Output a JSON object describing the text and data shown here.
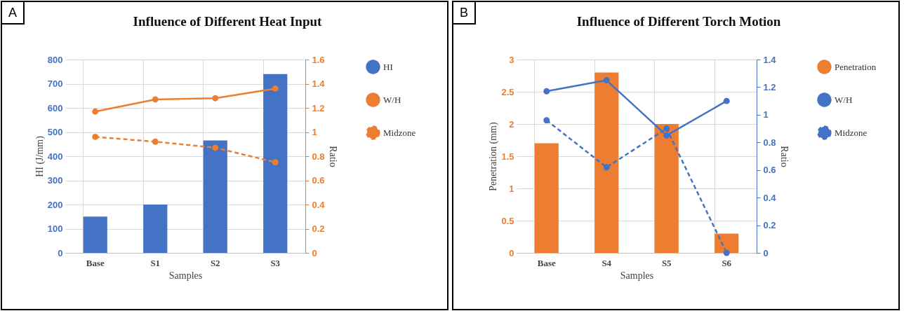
{
  "chart_data": [
    {
      "type": "bar",
      "title": "Influence of Different Heat Input",
      "annotations": [
        "A"
      ],
      "xlabel": "Samples",
      "ylabel": "HI (J/mm)",
      "y2label": "Ratio",
      "categories": [
        "Base",
        "S1",
        "S2",
        "S3"
      ],
      "series": [
        {
          "name": "HI",
          "color": "#4472c4",
          "values": [
            150,
            200,
            465,
            740
          ]
        },
        {
          "name": "W/H",
          "type": "line",
          "axis": "y2",
          "color": "#ed7d31",
          "line_style": "solid",
          "marker": "circle",
          "values": [
            1.17,
            1.27,
            1.28,
            1.36
          ]
        },
        {
          "name": "Midzone",
          "type": "line",
          "axis": "y2",
          "color": "#ed7d31",
          "line_style": "dashed",
          "marker": "circle",
          "values": [
            0.96,
            0.92,
            0.87,
            0.75
          ]
        }
      ],
      "ylim": [
        0,
        800
      ],
      "yticks": [
        0,
        100,
        200,
        300,
        400,
        500,
        600,
        700,
        800
      ],
      "y2lim": [
        0,
        1.6
      ],
      "y2ticks": [
        0,
        0.2,
        0.4,
        0.6,
        0.8,
        1,
        1.2,
        1.4,
        1.6
      ],
      "grid": true,
      "legend": "right"
    },
    {
      "type": "bar",
      "title": "Influence of Different Torch Motion",
      "annotations": [
        "B"
      ],
      "xlabel": "Samples",
      "ylabel": "Penetration (mm)",
      "y2label": "Ratio",
      "categories": [
        "Base",
        "S4",
        "S5",
        "S6"
      ],
      "series": [
        {
          "name": "Penetration",
          "color": "#ed7d31",
          "values": [
            1.7,
            2.8,
            2.0,
            0.3
          ]
        },
        {
          "name": "W/H",
          "type": "line",
          "axis": "y2",
          "color": "#4472c4",
          "line_style": "solid",
          "marker": "circle",
          "values": [
            1.17,
            1.25,
            0.85,
            1.1
          ]
        },
        {
          "name": "Midzone",
          "type": "line",
          "axis": "y2",
          "color": "#4472c4",
          "line_style": "dashed",
          "marker": "circle",
          "values": [
            0.96,
            0.62,
            0.9,
            0
          ]
        }
      ],
      "ylim": [
        0,
        3
      ],
      "yticks": [
        0,
        0.5,
        1,
        1.5,
        2,
        2.5,
        3
      ],
      "y2lim": [
        0,
        1.4
      ],
      "y2ticks": [
        0,
        0.2,
        0.4,
        0.6,
        0.8,
        1,
        1.2,
        1.4
      ],
      "grid": true,
      "legend": "right"
    }
  ]
}
